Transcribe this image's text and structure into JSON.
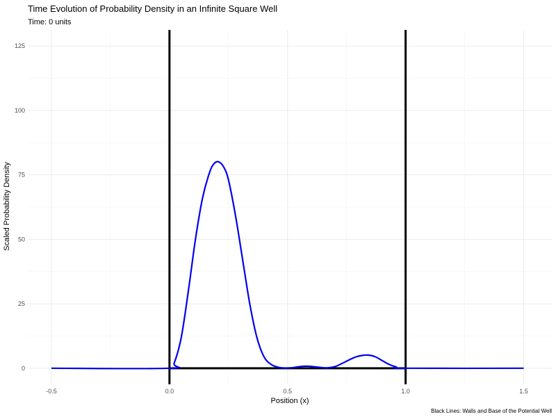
{
  "chart_data": {
    "type": "line",
    "title": "Time Evolution of Probability Density in an Infinite Square Well",
    "subtitle": "Time: 0 units",
    "xlabel": "Position (x)",
    "ylabel": "Scaled Probability Density",
    "caption": "Black Lines: Walls and Base of the Potential Well",
    "xlim": [
      -0.5,
      1.5
    ],
    "ylim": [
      0,
      125
    ],
    "x_ticks": [
      -0.5,
      0.0,
      0.5,
      1.0,
      1.5
    ],
    "x_tick_labels": [
      "-0.5",
      "0.0",
      "0.5",
      "1.0",
      "1.5"
    ],
    "y_ticks": [
      0,
      25,
      50,
      75,
      100,
      125
    ],
    "y_tick_labels": [
      "0",
      "25",
      "50",
      "75",
      "100",
      "125"
    ],
    "grid": true,
    "series": [
      {
        "color": "#0000ee",
        "x": [
          -0.5,
          0.0,
          0.02,
          0.05,
          0.08,
          0.11,
          0.14,
          0.17,
          0.19,
          0.21,
          0.23,
          0.25,
          0.28,
          0.31,
          0.34,
          0.37,
          0.4,
          0.43,
          0.46,
          0.49,
          0.52,
          0.55,
          0.58,
          0.61,
          0.64,
          0.67,
          0.7,
          0.73,
          0.76,
          0.79,
          0.82,
          0.84,
          0.87,
          0.9,
          0.93,
          0.96,
          1.0,
          1.5
        ],
        "y": [
          0,
          0,
          2,
          12,
          30,
          50,
          66,
          76,
          79.5,
          80,
          78,
          73,
          59,
          42,
          25,
          12,
          4.5,
          1.5,
          0.4,
          0.05,
          0.2,
          0.6,
          0.8,
          0.6,
          0.3,
          0.15,
          0.6,
          1.8,
          3.2,
          4.4,
          5.0,
          5.1,
          4.5,
          3.0,
          1.5,
          0.5,
          0,
          0
        ]
      }
    ],
    "wall_lines": {
      "color": "#000000",
      "walls_x": [
        0.0,
        1.0
      ],
      "base_y": 0
    }
  }
}
